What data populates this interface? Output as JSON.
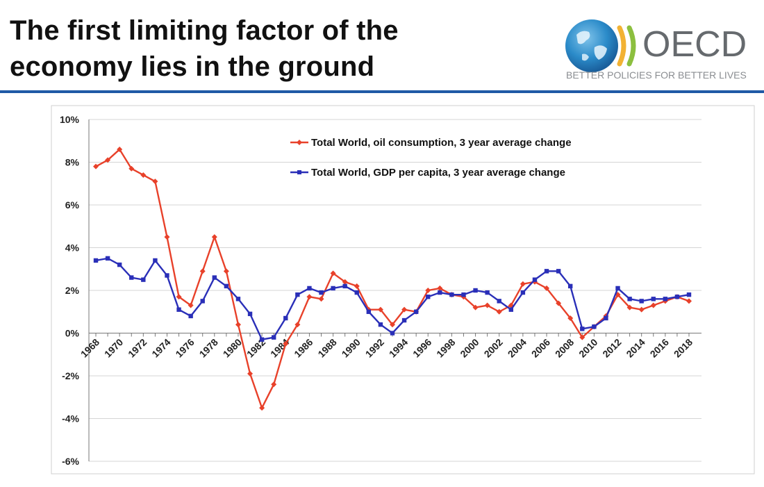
{
  "slide": {
    "title_line1": "The first limiting factor of the",
    "title_line2": "economy lies in the ground"
  },
  "logo": {
    "name": "OECD",
    "tagline": "BETTER POLICIES FOR BETTER LIVES"
  },
  "colors": {
    "oil": "#e8412a",
    "gdp": "#2a2fb8",
    "rule": "#1f5aa6",
    "grid": "#d4d4d4"
  },
  "chart_data": {
    "type": "line",
    "title": "",
    "xlabel": "",
    "ylabel": "",
    "x": [
      1968,
      1969,
      1970,
      1971,
      1972,
      1973,
      1974,
      1975,
      1976,
      1977,
      1978,
      1979,
      1980,
      1981,
      1982,
      1983,
      1984,
      1985,
      1986,
      1987,
      1988,
      1989,
      1990,
      1991,
      1992,
      1993,
      1994,
      1995,
      1996,
      1997,
      1998,
      1999,
      2000,
      2001,
      2002,
      2003,
      2004,
      2005,
      2006,
      2007,
      2008,
      2009,
      2010,
      2011,
      2012,
      2013,
      2014,
      2015,
      2016,
      2017,
      2018
    ],
    "ylim": [
      -6,
      10
    ],
    "yticks": [
      -6,
      -4,
      -2,
      0,
      2,
      4,
      6,
      8,
      10
    ],
    "ytick_labels": [
      "-6%",
      "-4%",
      "-2%",
      "0%",
      "2%",
      "4%",
      "6%",
      "8%",
      "10%"
    ],
    "xtick_labels": [
      "1968",
      "1970",
      "1972",
      "1974",
      "1976",
      "1978",
      "1980",
      "1982",
      "1984",
      "1986",
      "1988",
      "1990",
      "1992",
      "1994",
      "1996",
      "1998",
      "2000",
      "2002",
      "2004",
      "2006",
      "2008",
      "2010",
      "2012",
      "2014",
      "2016",
      "2018"
    ],
    "grid": true,
    "legend_position": "top-center",
    "series": [
      {
        "name": "Total World, oil consumption, 3 year average change",
        "values": [
          7.8,
          8.1,
          8.6,
          7.7,
          7.4,
          7.1,
          4.5,
          1.7,
          1.3,
          2.9,
          4.5,
          2.9,
          0.4,
          -1.9,
          -3.5,
          -2.4,
          -0.5,
          0.4,
          1.7,
          1.6,
          2.8,
          2.4,
          2.2,
          1.1,
          1.1,
          0.4,
          1.1,
          1.0,
          2.0,
          2.1,
          1.8,
          1.7,
          1.2,
          1.3,
          1.0,
          1.3,
          2.3,
          2.4,
          2.1,
          1.4,
          0.7,
          -0.2,
          0.3,
          0.8,
          1.8,
          1.2,
          1.1,
          1.3,
          1.5,
          1.7,
          1.5
        ]
      },
      {
        "name": "Total World, GDP per capita, 3 year average change",
        "values": [
          3.4,
          3.5,
          3.2,
          2.6,
          2.5,
          3.4,
          2.7,
          1.1,
          0.8,
          1.5,
          2.6,
          2.2,
          1.6,
          0.9,
          -0.3,
          -0.2,
          0.7,
          1.8,
          2.1,
          1.9,
          2.1,
          2.2,
          1.9,
          1.0,
          0.4,
          0.0,
          0.6,
          1.0,
          1.7,
          1.9,
          1.8,
          1.8,
          2.0,
          1.9,
          1.5,
          1.1,
          1.9,
          2.5,
          2.9,
          2.9,
          2.2,
          0.2,
          0.3,
          0.7,
          2.1,
          1.6,
          1.5,
          1.6,
          1.6,
          1.7,
          1.8
        ]
      }
    ]
  }
}
